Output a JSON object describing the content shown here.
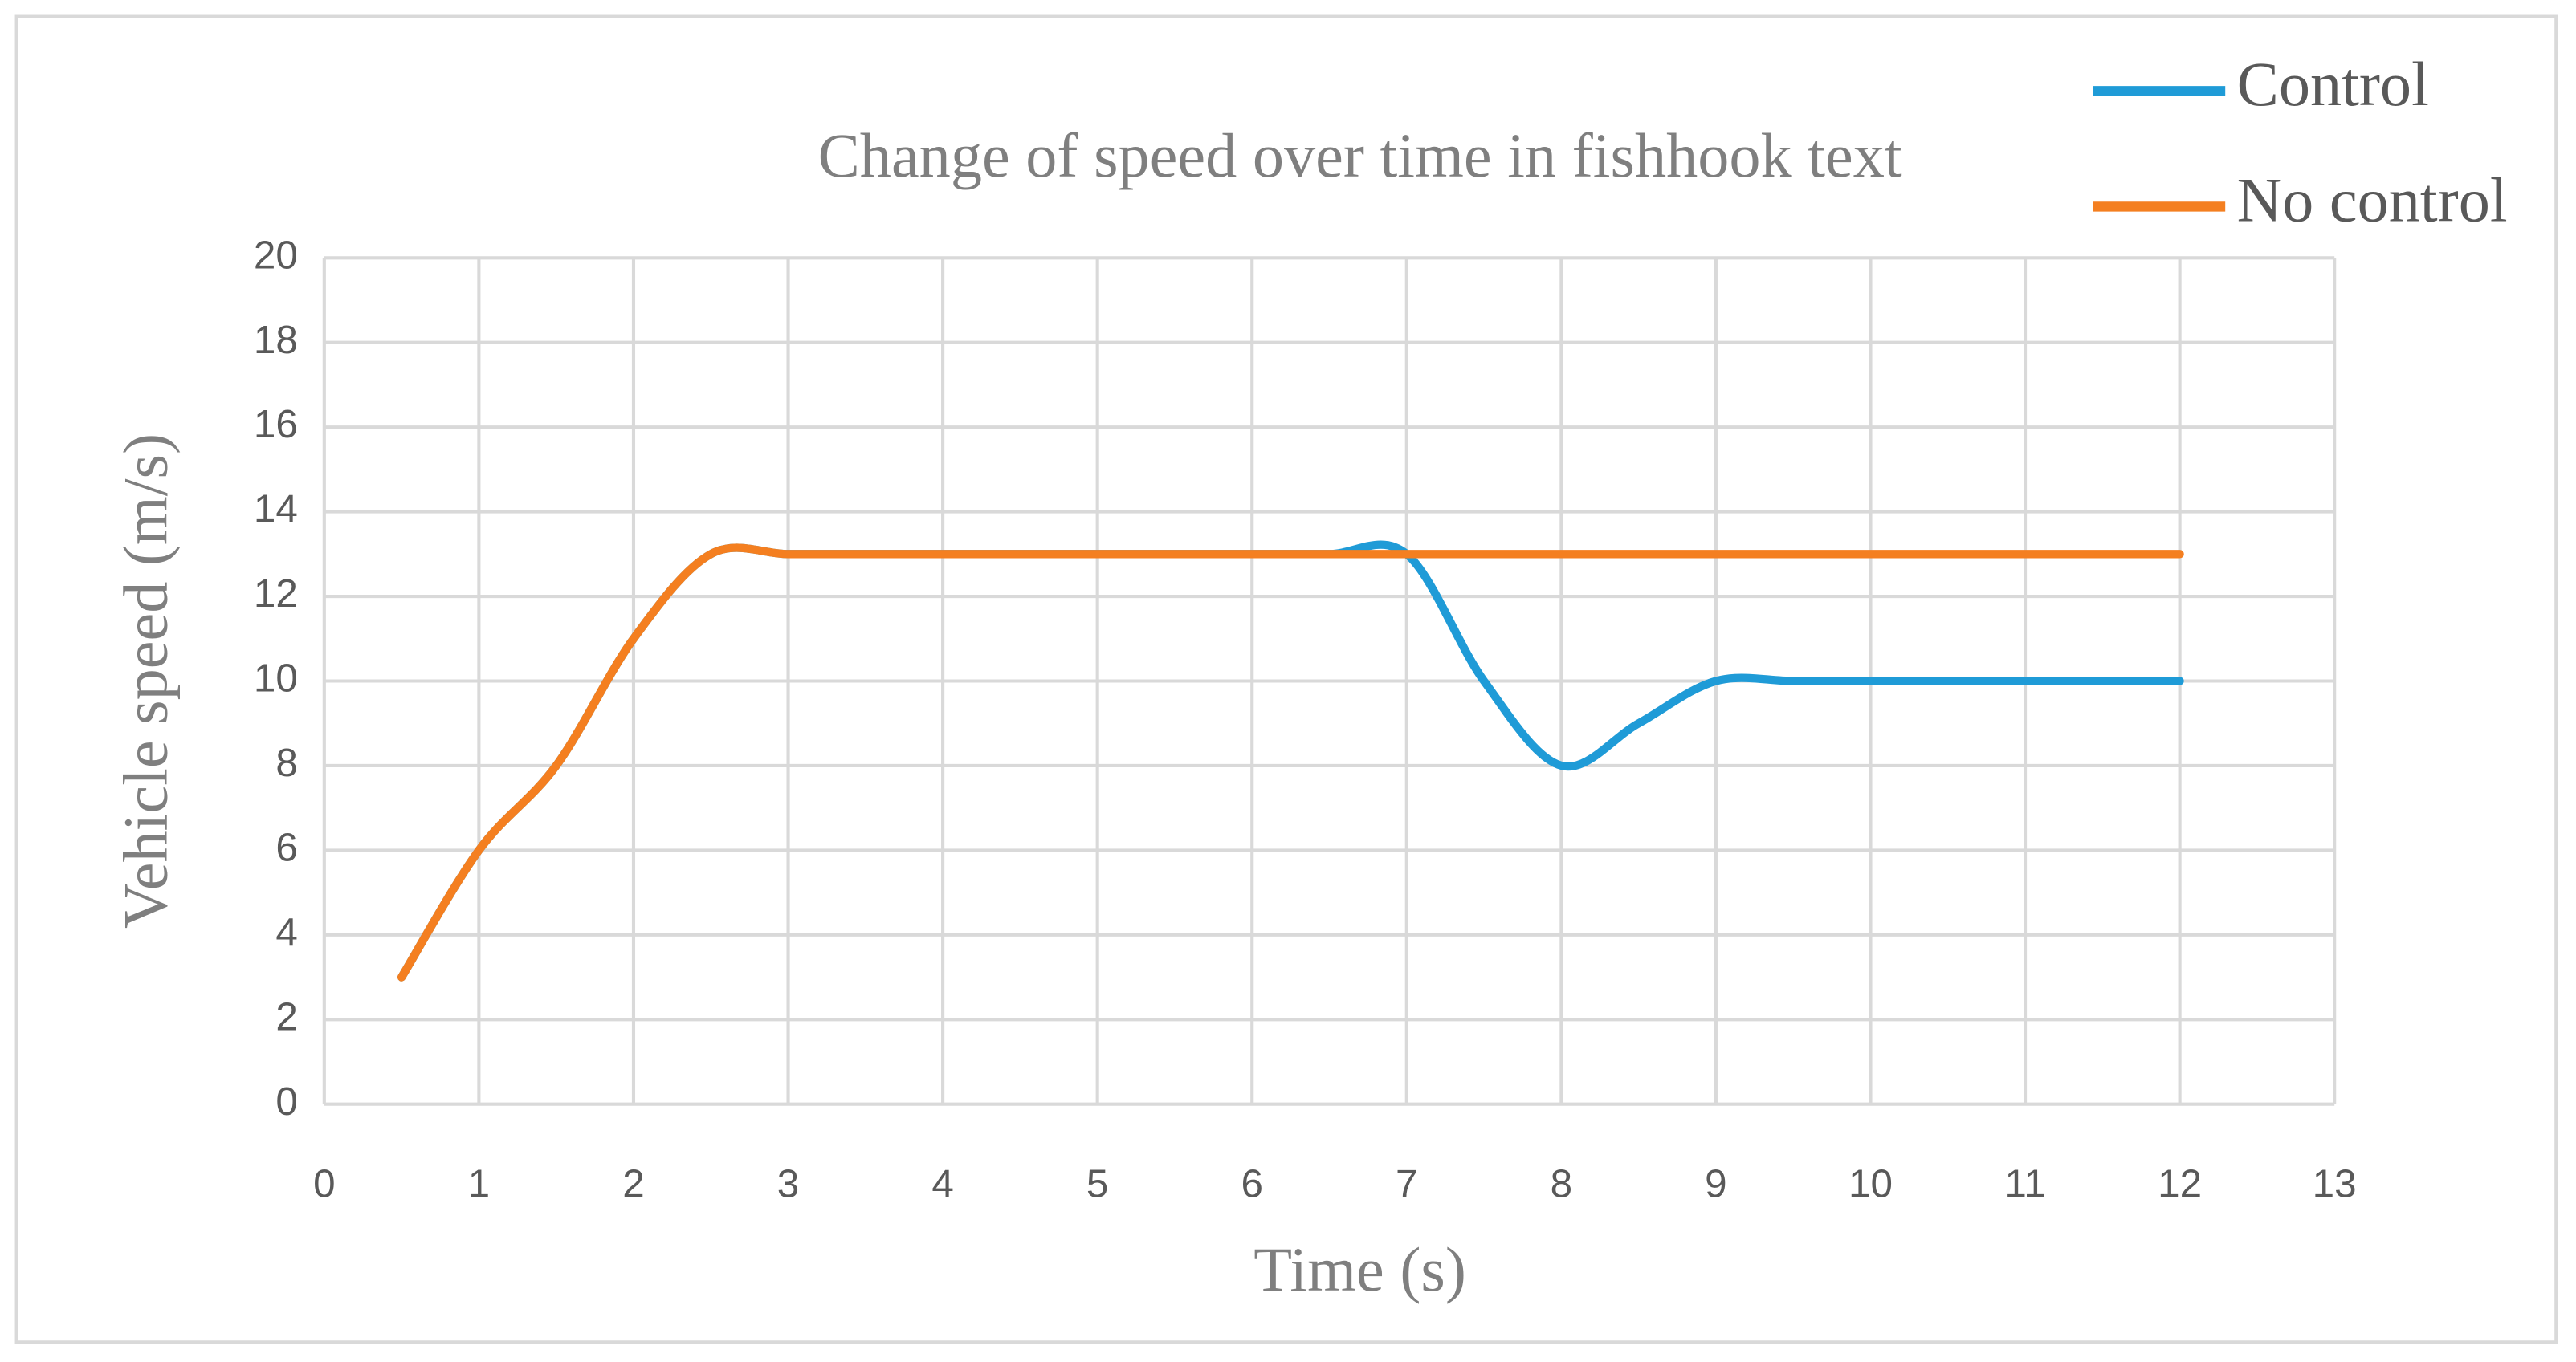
{
  "chart_data": {
    "type": "line",
    "title": "Change of speed over time in fishhook text",
    "x_label": "Time (s)",
    "y_label": "Vehicle speed (m/s)",
    "x": [
      0.5,
      1,
      1.5,
      2,
      2.5,
      3,
      3.5,
      4,
      4.5,
      5,
      5.5,
      6,
      6.5,
      7,
      7.5,
      8,
      8.5,
      9,
      9.5,
      10,
      10.5,
      11,
      11.5,
      12
    ],
    "series": [
      {
        "name": "Control",
        "color": "#1f9bd7",
        "values": [
          3,
          6,
          8,
          11,
          13,
          13,
          13,
          13,
          13,
          13,
          13,
          13,
          13,
          13,
          10,
          8,
          9,
          10,
          10,
          10,
          10,
          10,
          10,
          10
        ]
      },
      {
        "name": "No control",
        "color": "#f47f20",
        "values": [
          3,
          6,
          8,
          11,
          13,
          13,
          13,
          13,
          13,
          13,
          13,
          13,
          13,
          13,
          13,
          13,
          13,
          13,
          13,
          13,
          13,
          13,
          13,
          13
        ]
      }
    ],
    "xlim": [
      0,
      13
    ],
    "xticks": [
      0,
      1,
      2,
      3,
      4,
      5,
      6,
      7,
      8,
      9,
      10,
      11,
      12,
      13
    ],
    "ylim": [
      0,
      20
    ],
    "yticks": [
      0,
      2,
      4,
      6,
      8,
      10,
      12,
      14,
      16,
      18,
      20
    ],
    "grid": true,
    "legend": "top-right"
  }
}
